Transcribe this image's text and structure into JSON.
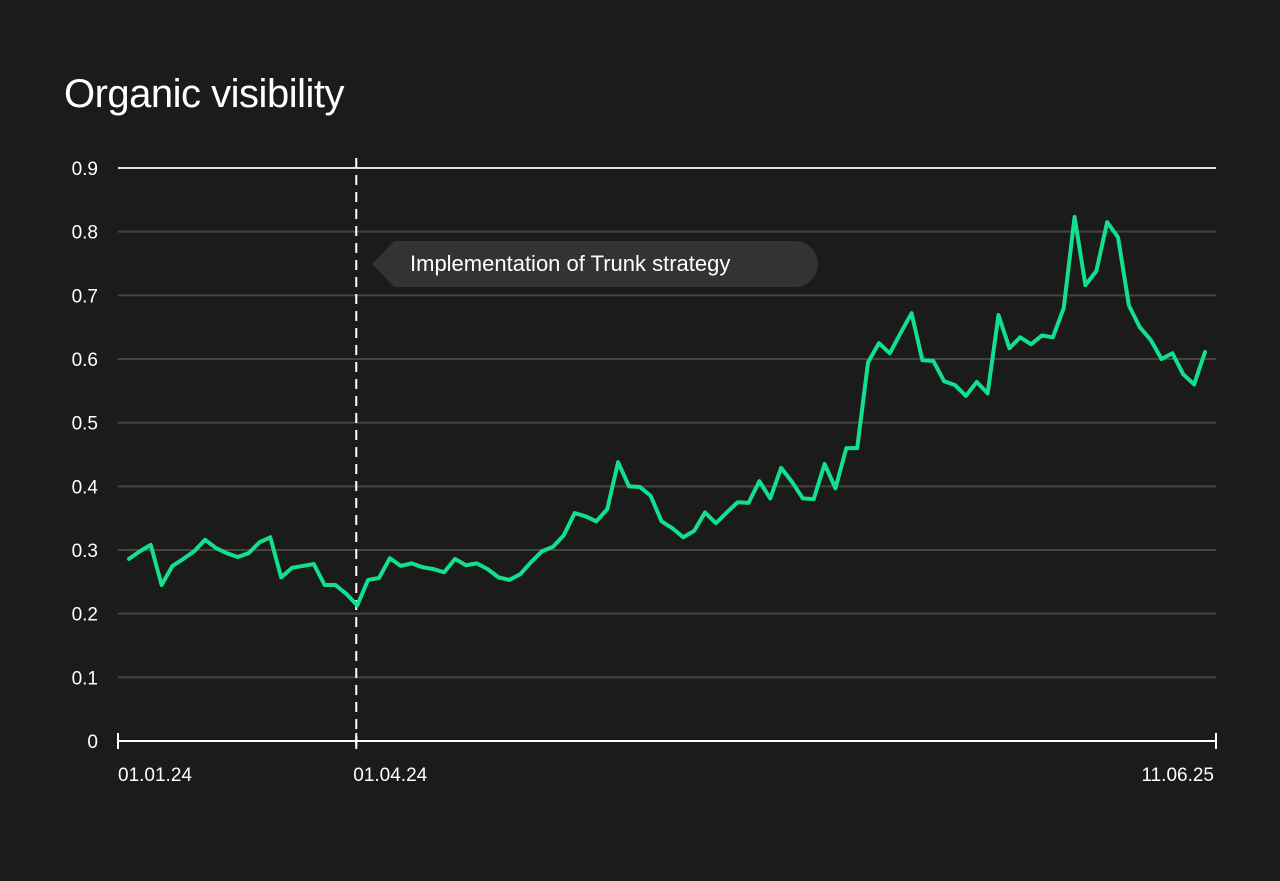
{
  "chart_data": {
    "type": "line",
    "title": "Organic visibility",
    "xlabel": "",
    "ylabel": "",
    "ylim": [
      0,
      0.9
    ],
    "yticks": [
      "0",
      "0.1",
      "0.2",
      "0.3",
      "0.4",
      "0.5",
      "0.6",
      "0.7",
      "0.8",
      "0.9"
    ],
    "xticks": [
      {
        "label": "01.01.24",
        "pos": 0
      },
      {
        "label": "01.04.24",
        "pos": 0.217
      },
      {
        "label": "11.06.25",
        "pos": 1
      }
    ],
    "grid": true,
    "annotation": {
      "label": "Implementation of Trunk strategy",
      "at": "01.04.24",
      "pos": 0.217
    },
    "colors": {
      "line": "#12e08f",
      "background": "#1b1b1b",
      "grid": "#444444",
      "tooltip": "#333333"
    },
    "series": [
      {
        "name": "Organic visibility",
        "values": [
          0.286,
          0.298,
          0.308,
          0.245,
          0.275,
          0.286,
          0.298,
          0.316,
          0.303,
          0.295,
          0.289,
          0.295,
          0.312,
          0.32,
          0.257,
          0.272,
          0.275,
          0.278,
          0.245,
          0.245,
          0.231,
          0.213,
          0.253,
          0.256,
          0.287,
          0.275,
          0.279,
          0.273,
          0.27,
          0.265,
          0.286,
          0.276,
          0.279,
          0.27,
          0.257,
          0.253,
          0.262,
          0.281,
          0.298,
          0.305,
          0.323,
          0.358,
          0.353,
          0.345,
          0.364,
          0.438,
          0.4,
          0.399,
          0.385,
          0.345,
          0.334,
          0.32,
          0.33,
          0.359,
          0.342,
          0.359,
          0.375,
          0.374,
          0.408,
          0.381,
          0.429,
          0.407,
          0.381,
          0.38,
          0.435,
          0.397,
          0.46,
          0.46,
          0.595,
          0.625,
          0.609,
          0.641,
          0.672,
          0.598,
          0.597,
          0.565,
          0.559,
          0.542,
          0.564,
          0.546,
          0.669,
          0.617,
          0.634,
          0.623,
          0.637,
          0.634,
          0.68,
          0.823,
          0.716,
          0.738,
          0.815,
          0.791,
          0.684,
          0.65,
          0.63,
          0.6,
          0.609,
          0.576,
          0.56,
          0.611
        ]
      }
    ]
  }
}
